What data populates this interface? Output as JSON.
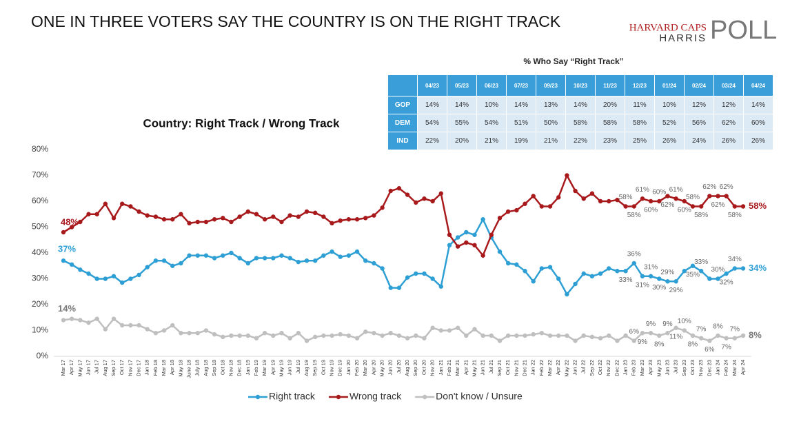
{
  "title": "ONE IN THREE VOTERS SAY THE COUNTRY IS ON THE RIGHT TRACK",
  "logo": {
    "line1": "HARVARD CAPS",
    "line2": "HARRIS",
    "line3": "POLL"
  },
  "table": {
    "title": "% Who Say “Right Track”",
    "columns": [
      "04/23",
      "05/23",
      "06/23",
      "07/23",
      "09/23",
      "10/23",
      "11/23",
      "12/23",
      "01/24",
      "02/24",
      "03/24",
      "04/24"
    ],
    "rows": [
      {
        "label": "GOP",
        "values": [
          "14%",
          "14%",
          "10%",
          "14%",
          "13%",
          "14%",
          "20%",
          "11%",
          "10%",
          "12%",
          "12%",
          "14%"
        ]
      },
      {
        "label": "DEM",
        "values": [
          "54%",
          "55%",
          "54%",
          "51%",
          "50%",
          "58%",
          "58%",
          "58%",
          "52%",
          "56%",
          "62%",
          "60%"
        ]
      },
      {
        "label": "IND",
        "values": [
          "22%",
          "20%",
          "21%",
          "19%",
          "21%",
          "22%",
          "23%",
          "25%",
          "26%",
          "24%",
          "26%",
          "26%"
        ]
      }
    ]
  },
  "chart_data": {
    "type": "line",
    "title": "Country: Right Track / Wrong Track",
    "categories": [
      "Mar 17",
      "Apr 17",
      "May 17",
      "Jun 17",
      "Jul 17",
      "Aug 17",
      "Sep 17",
      "Oct 17",
      "Nov 17",
      "Dec 17",
      "Jan 18",
      "Feb 18",
      "Mar 18",
      "Apr 18",
      "May 18",
      "June 18",
      "July 18",
      "Aug 18",
      "Sep 18",
      "Oct 18",
      "Nov 18",
      "Dec 18",
      "Jan 19",
      "Feb 19",
      "Mar 19",
      "Apr 19",
      "May 19",
      "Jun 19",
      "Jul 19",
      "Aug 19",
      "Sep 19",
      "Oct 19",
      "Nov 19",
      "Dec 19",
      "Jan 20",
      "Feb 20",
      "Mar 20",
      "Apr 20",
      "May 20",
      "Jun 20",
      "Jul 20",
      "Aug 20",
      "Sep 20",
      "Oct 20",
      "Nov 20",
      "Jan 21",
      "Feb 21",
      "Mar 21",
      "Apr 21",
      "May 21",
      "Jun 21",
      "Jul 21",
      "Sep 21",
      "Oct 21",
      "Nov 21",
      "Dec 21",
      "Jan 22",
      "Feb 22",
      "Mar 22",
      "Apr 22",
      "May 22",
      "Jun 22",
      "Jul 22",
      "Sep 22",
      "Oct 22",
      "Nov 22",
      "Dec 22",
      "Jan 23",
      "Feb 23",
      "Mar 23",
      "Apr 23",
      "May 23",
      "Jun 23",
      "Jul 23",
      "Sep 23",
      "Oct 23",
      "Nov 23",
      "Dec 23",
      "Jan 24",
      "Feb 24",
      "Mar 24",
      "Apr 24"
    ],
    "series": [
      {
        "name": "Right track",
        "color": "#2e9fd4",
        "values": [
          37,
          35.5,
          33.5,
          32,
          30,
          30,
          31,
          28.5,
          30,
          31.5,
          34.5,
          37,
          37,
          35,
          36,
          39,
          39,
          39,
          38,
          39,
          40,
          38,
          36,
          38,
          38,
          38,
          39,
          38,
          36.5,
          37,
          37,
          39,
          40.5,
          38.5,
          39,
          40.5,
          37,
          36,
          34,
          26.5,
          26.5,
          30.5,
          32,
          32,
          30,
          27,
          43,
          46,
          48,
          47,
          53,
          46,
          40.5,
          36,
          35.5,
          33,
          29,
          34,
          34.5,
          30,
          24,
          28,
          32,
          31,
          32,
          34,
          33,
          33,
          36,
          31,
          31,
          30,
          29,
          29,
          33,
          35,
          33,
          30,
          30,
          32,
          34,
          34
        ],
        "value_labels": [
          "37%",
          null,
          null,
          null,
          null,
          null,
          null,
          null,
          null,
          null,
          null,
          null,
          null,
          null,
          null,
          null,
          null,
          null,
          null,
          null,
          null,
          null,
          null,
          null,
          null,
          null,
          null,
          null,
          null,
          null,
          null,
          null,
          null,
          null,
          null,
          null,
          null,
          null,
          null,
          null,
          null,
          null,
          null,
          null,
          null,
          null,
          null,
          null,
          null,
          null,
          null,
          null,
          null,
          null,
          null,
          null,
          null,
          null,
          null,
          null,
          null,
          null,
          null,
          null,
          null,
          null,
          null,
          "33%",
          "36%",
          "31%",
          "31%",
          "30%",
          "29%",
          "29%",
          null,
          "35%",
          "33%",
          null,
          "30%",
          "32%",
          "34%",
          "34%"
        ]
      },
      {
        "name": "Wrong track",
        "color": "#a8191c",
        "values": [
          48,
          50,
          52,
          55,
          55,
          59,
          53.5,
          59,
          58,
          56,
          54.5,
          54,
          53,
          53,
          55,
          51.5,
          52,
          52,
          53,
          53.5,
          52,
          54,
          56,
          55,
          53,
          54,
          52,
          54.5,
          54,
          56,
          55.5,
          54,
          51.5,
          52.5,
          53,
          53,
          53.5,
          54.5,
          57.5,
          64,
          65,
          62.5,
          59.5,
          61,
          60,
          63,
          47,
          42.5,
          44,
          43,
          39,
          47,
          53.5,
          56,
          56.5,
          59,
          62,
          58,
          58,
          61.5,
          70,
          64,
          61,
          63,
          60,
          60,
          60.5,
          58,
          58,
          61,
          60,
          60,
          62,
          61,
          60,
          58,
          58,
          62,
          62,
          62,
          58,
          58
        ],
        "value_labels": [
          "48%",
          null,
          null,
          null,
          null,
          null,
          null,
          null,
          null,
          null,
          null,
          null,
          null,
          null,
          null,
          null,
          null,
          null,
          null,
          null,
          null,
          null,
          null,
          null,
          null,
          null,
          null,
          null,
          null,
          null,
          null,
          null,
          null,
          null,
          null,
          null,
          null,
          null,
          null,
          null,
          null,
          null,
          null,
          null,
          null,
          null,
          null,
          null,
          null,
          null,
          null,
          null,
          null,
          null,
          null,
          null,
          null,
          null,
          null,
          null,
          null,
          null,
          null,
          null,
          null,
          null,
          null,
          "58%",
          "58%",
          "61%",
          "60%",
          "60%",
          "62%",
          "61%",
          "60%",
          "58%",
          "58%",
          "62%",
          "62%",
          "62%",
          "58%",
          "58%"
        ]
      },
      {
        "name": "Don't know / Unsure",
        "color": "#bfbfbf",
        "values": [
          14,
          14.5,
          14,
          13,
          14.5,
          10.5,
          14.5,
          12,
          12,
          12,
          10.5,
          9,
          10,
          12,
          9,
          9,
          9,
          10,
          8.5,
          7.5,
          8,
          8,
          8,
          7,
          9,
          8,
          9,
          7,
          9,
          6,
          7.5,
          8,
          8,
          8.5,
          8,
          7,
          9.5,
          9,
          8,
          9,
          8,
          7,
          8,
          7,
          11,
          10,
          10,
          11,
          8,
          10.5,
          8,
          8,
          6,
          8,
          8,
          8,
          8.5,
          9,
          8,
          8,
          8,
          6,
          8,
          7.5,
          7,
          8,
          6,
          8,
          6,
          9,
          9,
          8,
          9,
          11,
          10,
          8,
          7,
          6,
          8,
          7,
          7,
          8
        ],
        "value_labels": [
          "14%",
          null,
          null,
          null,
          null,
          null,
          null,
          null,
          null,
          null,
          null,
          null,
          null,
          null,
          null,
          null,
          null,
          null,
          null,
          null,
          null,
          null,
          null,
          null,
          null,
          null,
          null,
          null,
          null,
          null,
          null,
          null,
          null,
          null,
          null,
          null,
          null,
          null,
          null,
          null,
          null,
          null,
          null,
          null,
          null,
          null,
          null,
          null,
          null,
          null,
          null,
          null,
          null,
          null,
          null,
          null,
          null,
          null,
          null,
          null,
          null,
          null,
          null,
          null,
          null,
          null,
          null,
          null,
          "6%",
          "9%",
          "9%",
          "8%",
          "9%",
          "11%",
          "10%",
          "8%",
          "7%",
          "6%",
          "8%",
          "7%",
          "7%",
          "8%"
        ]
      }
    ],
    "ylim": [
      0,
      80
    ],
    "yticks": [
      {
        "value": 0,
        "label": "0%"
      },
      {
        "value": 10,
        "label": "10%"
      },
      {
        "value": 20,
        "label": "20%"
      },
      {
        "value": 30,
        "label": "30%"
      },
      {
        "value": 40,
        "label": "40%"
      },
      {
        "value": 50,
        "label": "50%"
      },
      {
        "value": 60,
        "label": "60%"
      },
      {
        "value": 70,
        "label": "70%"
      },
      {
        "value": 80,
        "label": "80%"
      }
    ],
    "grid": false,
    "legend": "bottom"
  }
}
